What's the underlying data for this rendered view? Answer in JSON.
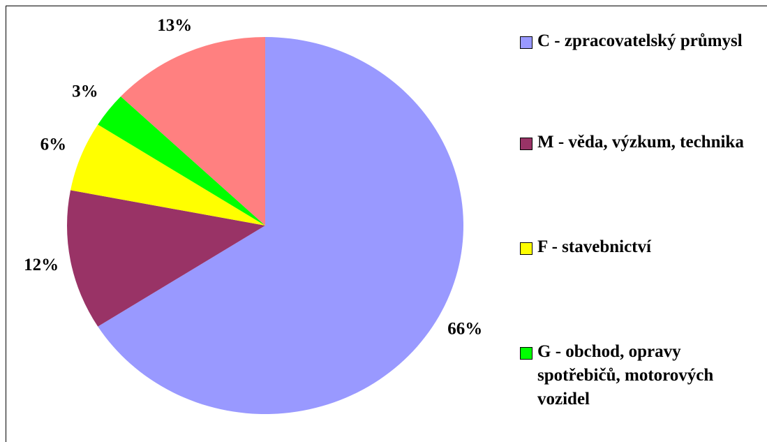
{
  "chart_data": {
    "type": "pie",
    "categories": [
      "C - zpracovatelský průmysl",
      "M - věda, výzkum, technika",
      "F - stavebnictví",
      "G - obchod, opravy spotřebičů, motorových vozidel",
      null
    ],
    "values": [
      66,
      12,
      6,
      3,
      13
    ],
    "value_labels": [
      "66%",
      "12%",
      "6%",
      "3%",
      "13%"
    ],
    "colors": [
      "#9999ff",
      "#993366",
      "#ffff00",
      "#00ff00",
      "#ff8080"
    ],
    "legend": "right"
  }
}
